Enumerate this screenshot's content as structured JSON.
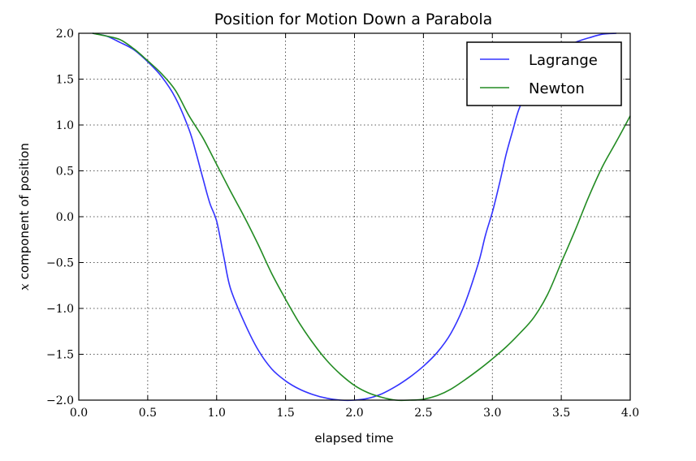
{
  "chart_data": {
    "type": "line",
    "title": "Position for Motion Down a Parabola",
    "xlabel": "elapsed time",
    "ylabel_math": "x",
    "ylabel": "component of position",
    "xlim": [
      0.0,
      4.0
    ],
    "ylim": [
      -2.0,
      2.0
    ],
    "xticks": [
      0.0,
      0.5,
      1.0,
      1.5,
      2.0,
      2.5,
      3.0,
      3.5,
      4.0
    ],
    "xtick_labels": [
      "0.0",
      "0.5",
      "1.0",
      "1.5",
      "2.0",
      "2.5",
      "3.0",
      "3.5",
      "4.0"
    ],
    "yticks": [
      2.0,
      1.5,
      1.0,
      0.5,
      0.0,
      -0.5,
      -1.0,
      -1.5,
      -2.0
    ],
    "ytick_labels": [
      "2.0",
      "1.5",
      "1.0",
      "0.5",
      "0.0",
      "−0.5",
      "−1.0",
      "−1.5",
      "−2.0"
    ],
    "grid": true,
    "legend_position": "top-right",
    "series": [
      {
        "name": "Lagrange",
        "color": "#3333ff",
        "x": [
          0.1,
          0.2,
          0.3,
          0.4,
          0.5,
          0.6,
          0.7,
          0.8,
          0.85,
          0.9,
          0.95,
          1.0,
          1.05,
          1.1,
          1.2,
          1.3,
          1.4,
          1.5,
          1.6,
          1.7,
          1.8,
          1.9,
          2.0,
          2.1,
          2.2,
          2.3,
          2.4,
          2.5,
          2.6,
          2.7,
          2.8,
          2.9,
          2.95,
          3.0,
          3.05,
          3.1,
          3.15,
          3.2,
          3.3,
          3.4,
          3.5,
          3.6,
          3.7,
          3.8,
          3.9
        ],
        "y": [
          2.0,
          1.97,
          1.9,
          1.82,
          1.69,
          1.53,
          1.3,
          0.95,
          0.7,
          0.42,
          0.15,
          -0.05,
          -0.42,
          -0.78,
          -1.15,
          -1.45,
          -1.66,
          -1.79,
          -1.88,
          -1.94,
          -1.98,
          -2.0,
          -2.0,
          -1.98,
          -1.93,
          -1.85,
          -1.75,
          -1.63,
          -1.48,
          -1.27,
          -0.95,
          -0.5,
          -0.2,
          0.05,
          0.35,
          0.68,
          0.95,
          1.2,
          1.48,
          1.68,
          1.82,
          1.9,
          1.95,
          1.99,
          2.0
        ]
      },
      {
        "name": "Newton",
        "color": "#228b22",
        "x": [
          0.1,
          0.2,
          0.3,
          0.4,
          0.5,
          0.6,
          0.7,
          0.8,
          0.9,
          1.0,
          1.1,
          1.2,
          1.3,
          1.4,
          1.5,
          1.6,
          1.7,
          1.8,
          1.9,
          2.0,
          2.1,
          2.2,
          2.3,
          2.4,
          2.5,
          2.6,
          2.7,
          2.8,
          2.9,
          3.0,
          3.1,
          3.2,
          3.3,
          3.4,
          3.5,
          3.6,
          3.7,
          3.8,
          3.9,
          4.0
        ],
        "y": [
          2.0,
          1.97,
          1.93,
          1.83,
          1.7,
          1.56,
          1.38,
          1.1,
          0.86,
          0.57,
          0.28,
          0.0,
          -0.3,
          -0.62,
          -0.9,
          -1.16,
          -1.38,
          -1.57,
          -1.72,
          -1.84,
          -1.92,
          -1.97,
          -2.0,
          -2.0,
          -1.99,
          -1.95,
          -1.88,
          -1.78,
          -1.67,
          -1.55,
          -1.42,
          -1.27,
          -1.1,
          -0.85,
          -0.5,
          -0.15,
          0.22,
          0.55,
          0.82,
          1.1
        ]
      }
    ]
  }
}
